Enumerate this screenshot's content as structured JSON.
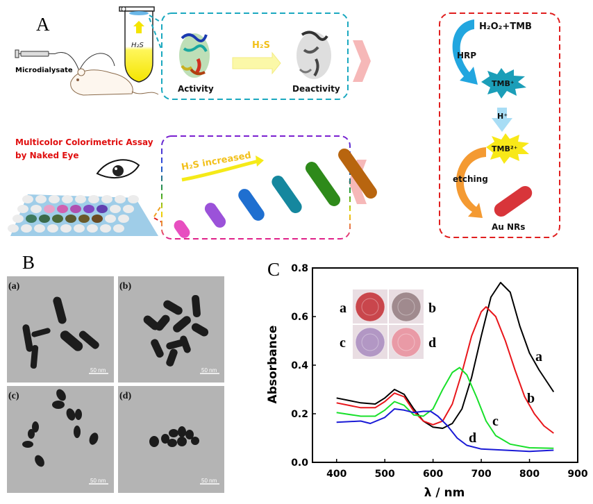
{
  "panel_a": {
    "label": "A",
    "microdialysate": "Microdialysate",
    "tube_label": "H₂S",
    "activity": "Activity",
    "deactivity": "Deactivity",
    "h2s_arrow": "H₂S",
    "assay_title_line1": "Multicolor Colorimetric Assay",
    "assay_title_line2": "by Naked Eye",
    "h2s_increased": "H₂S increased",
    "reaction": {
      "reagents": "H₂O₂+TMB",
      "hrp": "HRP",
      "tmb_plus": "TMB⁺",
      "h_plus": "H⁺",
      "tmb_2plus": "TMB²⁺",
      "etching": "etching",
      "au_nrs": "Au NRs"
    },
    "rod_colors": [
      "#e74fc0",
      "#9b52d9",
      "#1f6fd0",
      "#15879e",
      "#2e8a1a",
      "#b8650f"
    ],
    "box_colors": {
      "enzyme": "#1aa8bf",
      "reaction": "#e01e1e",
      "assay": "#b020b0"
    }
  },
  "panel_b": {
    "label": "B",
    "images": [
      {
        "label": "(a)",
        "scale": "50 nm"
      },
      {
        "label": "(b)",
        "scale": "50 nm"
      },
      {
        "label": "(c)",
        "scale": "50 nm"
      },
      {
        "label": "(d)",
        "scale": "50 nm"
      }
    ]
  },
  "panel_c": {
    "label": "C",
    "inset_labels": [
      "a",
      "b",
      "c",
      "d"
    ],
    "inset_colors": [
      "#c9464c",
      "#a08a8e",
      "#b297c4",
      "#e99aa6"
    ]
  },
  "chart_data": {
    "type": "line",
    "title": "",
    "xlabel": "λ / nm",
    "ylabel": "Absorbance",
    "xlim": [
      350,
      900
    ],
    "ylim": [
      0.0,
      0.8
    ],
    "xticks": [
      "400",
      "500",
      "600",
      "700",
      "800",
      "900"
    ],
    "yticks": [
      "0.0",
      "0.2",
      "0.4",
      "0.6",
      "0.8"
    ],
    "grid": false,
    "series": [
      {
        "name": "a",
        "color": "#000000",
        "x": [
          400,
          450,
          480,
          500,
          520,
          540,
          560,
          580,
          600,
          620,
          640,
          660,
          680,
          700,
          720,
          740,
          760,
          780,
          800,
          820,
          850
        ],
        "y": [
          0.265,
          0.245,
          0.24,
          0.265,
          0.3,
          0.28,
          0.22,
          0.17,
          0.145,
          0.14,
          0.16,
          0.22,
          0.35,
          0.52,
          0.68,
          0.74,
          0.7,
          0.56,
          0.45,
          0.38,
          0.29
        ]
      },
      {
        "name": "b",
        "color": "#e8161b",
        "x": [
          400,
          450,
          480,
          500,
          520,
          540,
          560,
          580,
          600,
          620,
          640,
          660,
          680,
          700,
          710,
          730,
          750,
          770,
          790,
          810,
          830,
          850
        ],
        "y": [
          0.245,
          0.225,
          0.225,
          0.25,
          0.285,
          0.27,
          0.21,
          0.17,
          0.155,
          0.17,
          0.24,
          0.37,
          0.52,
          0.62,
          0.64,
          0.6,
          0.5,
          0.38,
          0.27,
          0.2,
          0.15,
          0.12
        ]
      },
      {
        "name": "c",
        "color": "#18e02a",
        "x": [
          400,
          450,
          480,
          500,
          520,
          540,
          560,
          580,
          600,
          620,
          640,
          655,
          670,
          690,
          710,
          730,
          760,
          800,
          850
        ],
        "y": [
          0.205,
          0.19,
          0.19,
          0.215,
          0.25,
          0.235,
          0.195,
          0.19,
          0.22,
          0.3,
          0.37,
          0.39,
          0.36,
          0.27,
          0.17,
          0.11,
          0.075,
          0.06,
          0.058
        ]
      },
      {
        "name": "d",
        "color": "#1a1ad6",
        "x": [
          400,
          450,
          470,
          500,
          520,
          540,
          560,
          580,
          595,
          610,
          630,
          650,
          670,
          700,
          750,
          800,
          850
        ],
        "y": [
          0.165,
          0.17,
          0.16,
          0.185,
          0.22,
          0.215,
          0.205,
          0.21,
          0.21,
          0.19,
          0.15,
          0.1,
          0.07,
          0.055,
          0.05,
          0.045,
          0.05
        ]
      }
    ],
    "curve_labels": [
      "a",
      "b",
      "c",
      "d"
    ]
  }
}
